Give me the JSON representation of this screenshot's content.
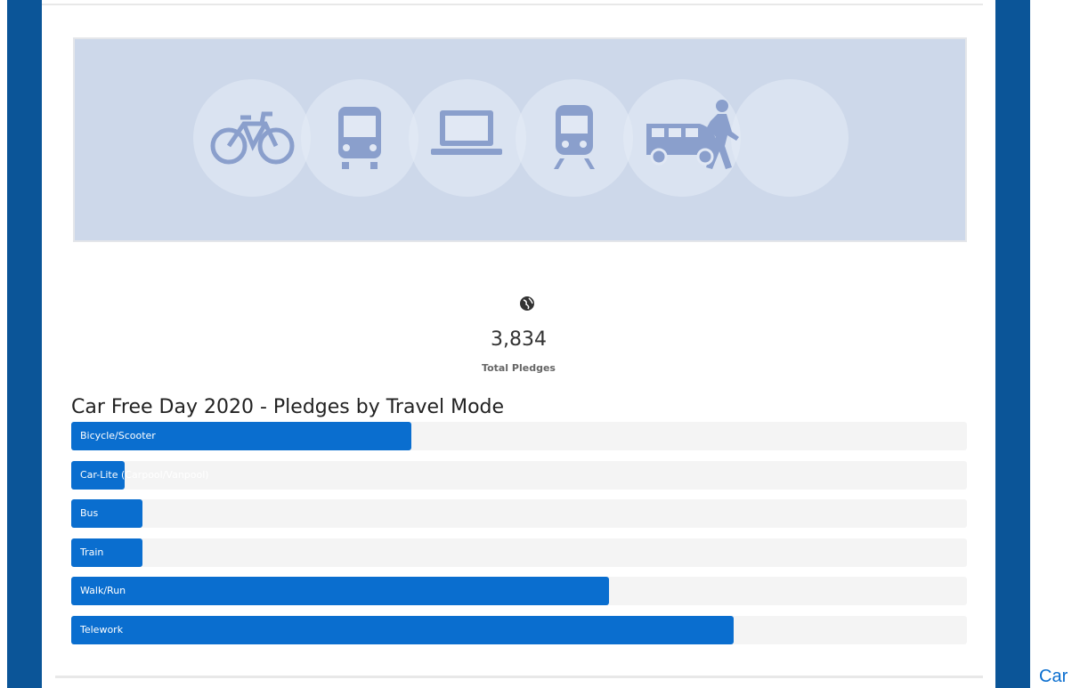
{
  "stats": {
    "total": "3,834",
    "label": "Total Pledges"
  },
  "chart_data": {
    "type": "bar",
    "orientation": "horizontal",
    "title": "Car Free Day 2020 - Pledges by Travel Mode",
    "categories": [
      "Bicycle/Scooter",
      "Car-Lite (Carpool/Vanpool)",
      "Bus",
      "Train",
      "Walk/Run",
      "Telework"
    ],
    "values": [
      38,
      6,
      8,
      8,
      60,
      74
    ],
    "xlim": [
      0,
      100
    ],
    "color": "#0a6ecf"
  },
  "footer": {
    "link": "Car"
  }
}
